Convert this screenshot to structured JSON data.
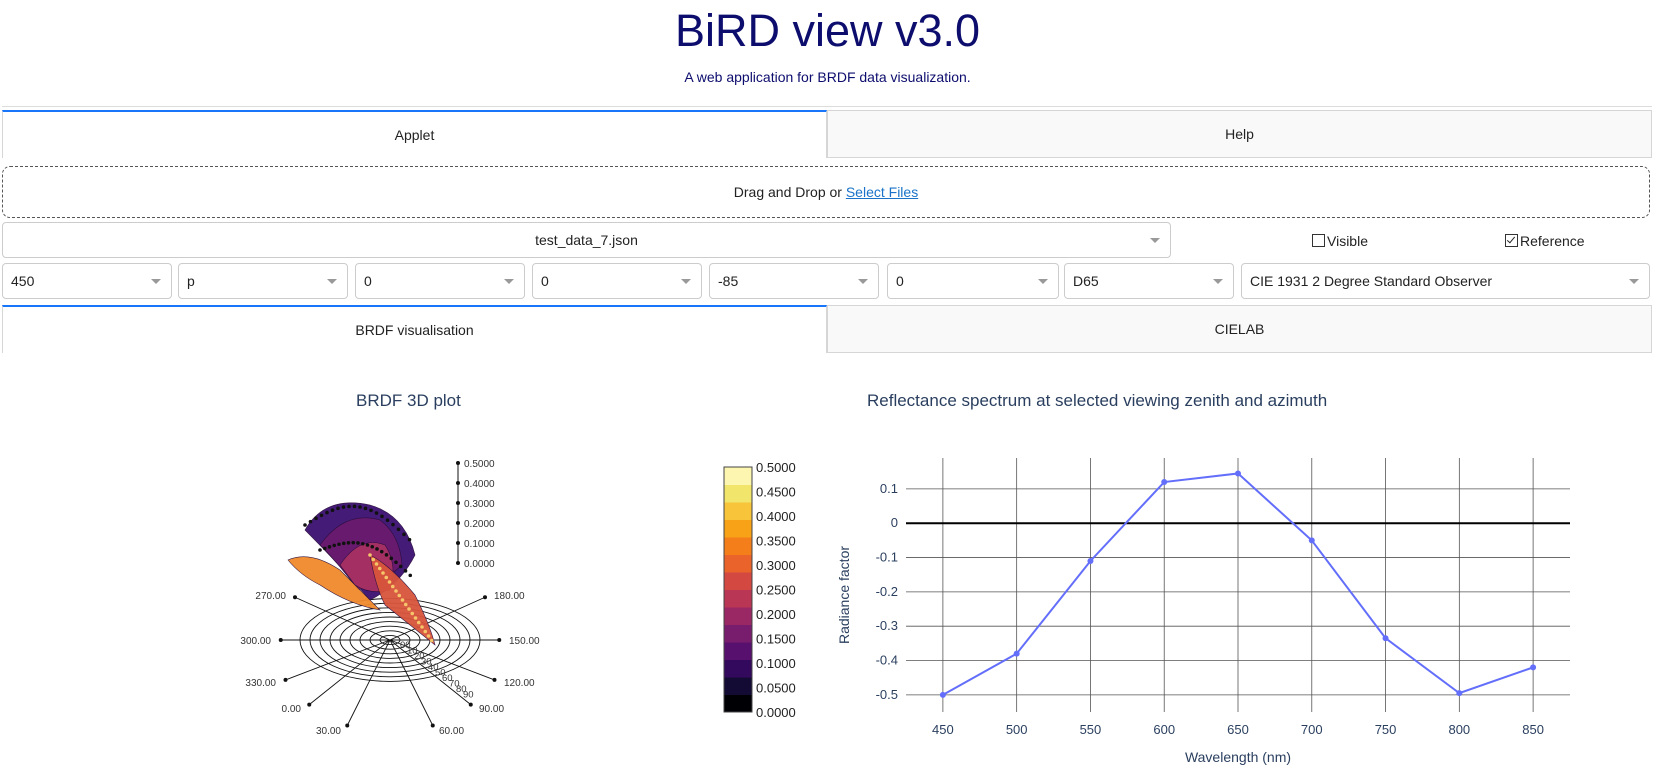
{
  "app": {
    "title": "BiRD view v3.0",
    "subtitle": "A web application for BRDF data visualization."
  },
  "main_tabs": [
    {
      "label": "Applet",
      "active": true
    },
    {
      "label": "Help",
      "active": false
    }
  ],
  "upload": {
    "text": "Drag and Drop or ",
    "link": "Select Files"
  },
  "file_select": {
    "value": "test_data_7.json"
  },
  "checkboxes": {
    "visible": {
      "label": "Visible",
      "checked": false
    },
    "reference": {
      "label": "Reference",
      "checked": true
    }
  },
  "selectors": {
    "wavelength": "450",
    "polarization": "p",
    "theta_i": "0",
    "phi_i": "0",
    "theta_r": "-85",
    "phi_r": "0",
    "illuminant": "D65",
    "observer": "CIE 1931 2 Degree Standard Observer"
  },
  "view_tabs": [
    {
      "label": "BRDF visualisation",
      "active": true
    },
    {
      "label": "CIELAB",
      "active": false
    }
  ],
  "colors": {
    "accent": "#1975fa",
    "title": "#0d0d6e",
    "line": "#636efa",
    "link": "#1a73c8"
  },
  "brdf_plot": {
    "title": "BRDF 3D plot",
    "z_ticks": [
      "0.5000",
      "0.4000",
      "0.3000",
      "0.2000",
      "0.1000",
      "0.0000"
    ],
    "azimuth_labels": [
      "270.00",
      "180.00",
      "300.00",
      "150.00",
      "330.00",
      "120.00",
      "0.00",
      "90.00",
      "30.00",
      "60.00"
    ],
    "zenith_labels": [
      "00",
      "10",
      "20",
      "30",
      "40",
      "50",
      "60",
      "70",
      "80",
      "90"
    ],
    "colorbar_ticks": [
      "0.5000",
      "0.4500",
      "0.4000",
      "0.3500",
      "0.3000",
      "0.2500",
      "0.2000",
      "0.1500",
      "0.1000",
      "0.0500",
      "0.0000"
    ]
  },
  "chart_data": {
    "type": "line",
    "title": "Reflectance spectrum at selected viewing zenith and azimuth",
    "xlabel": "Wavelength (nm)",
    "ylabel": "Radiance factor",
    "x": [
      450,
      500,
      550,
      600,
      650,
      700,
      750,
      800,
      850
    ],
    "y": [
      -0.5,
      -0.38,
      -0.11,
      0.12,
      0.145,
      -0.05,
      -0.335,
      -0.495,
      -0.42
    ],
    "xlim": [
      425,
      875
    ],
    "ylim": [
      -0.5,
      0.1
    ],
    "xticks": [
      "450",
      "500",
      "550",
      "600",
      "650",
      "700",
      "750",
      "800",
      "850"
    ],
    "yticks": [
      "0.1",
      "0",
      "-0.1",
      "-0.2",
      "-0.3",
      "-0.4",
      "-0.5"
    ],
    "grid": true
  }
}
